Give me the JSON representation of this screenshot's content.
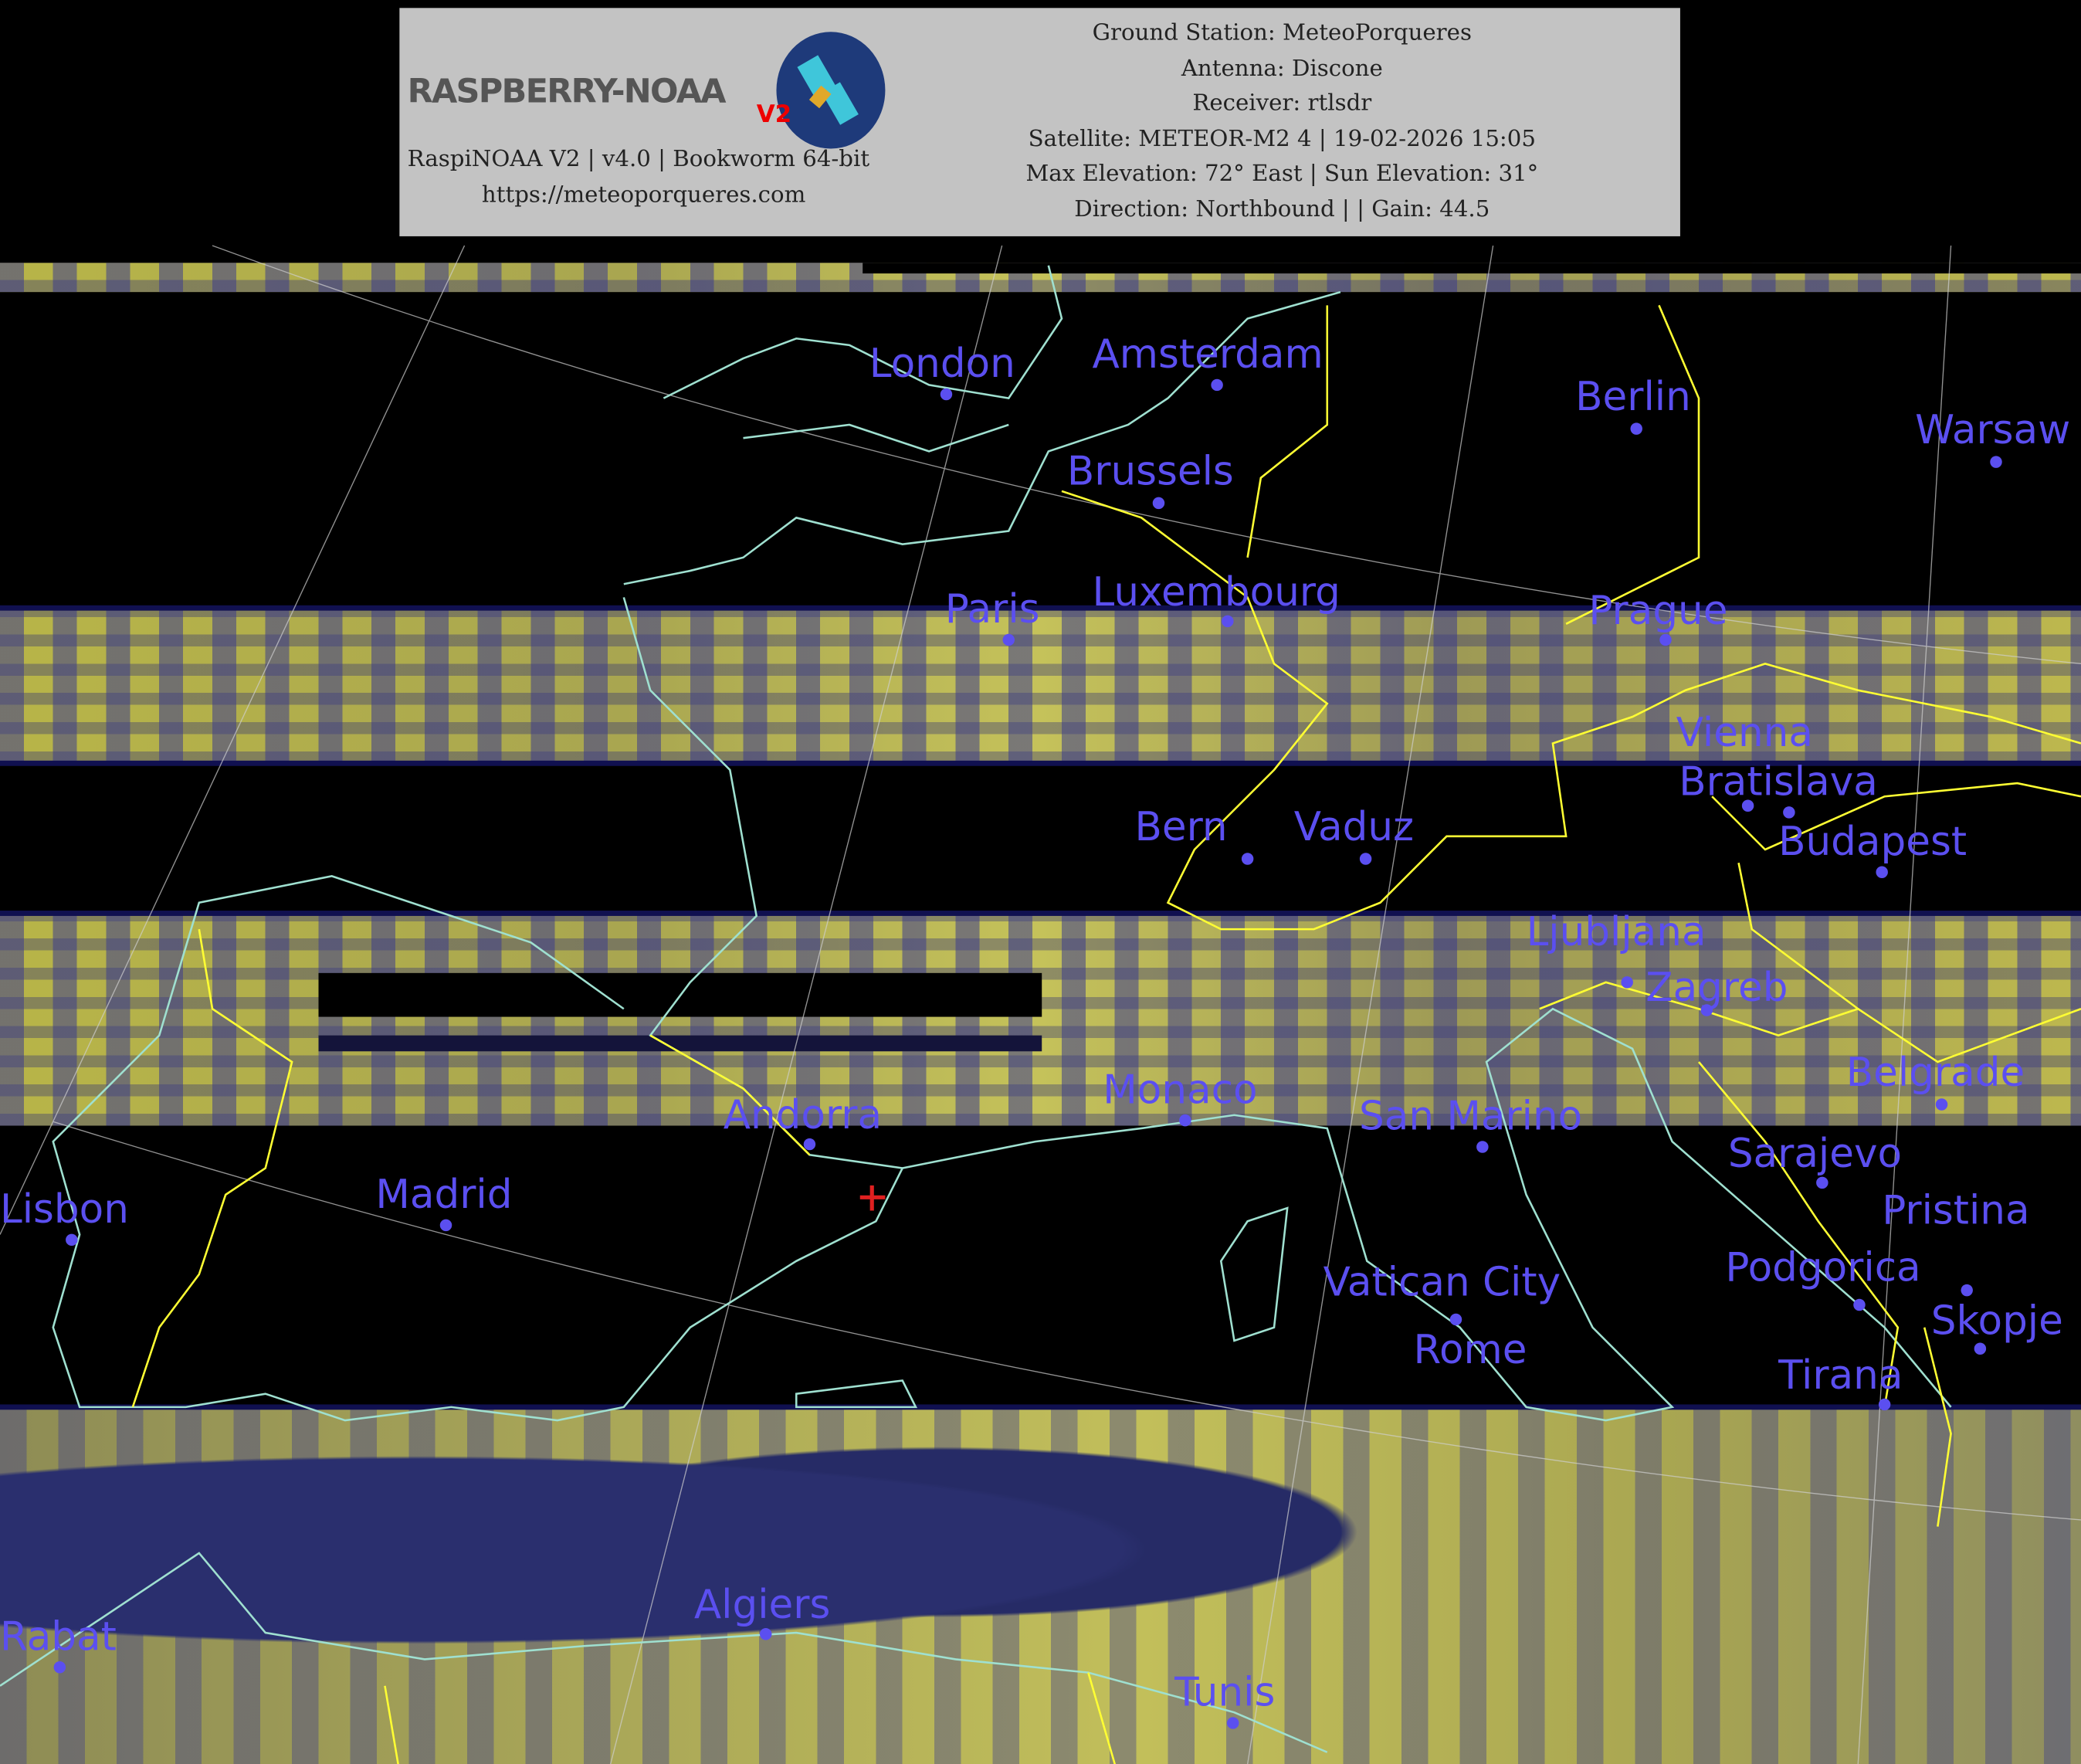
{
  "header": {
    "logo_text": "RASPBERRY-NOAA",
    "logo_badge": "V2",
    "software": "RaspiNOAA V2 | v4.0 | Bookworm 64-bit",
    "website": "https://meteoporqueres.com",
    "ground_station": "Ground Station: MeteoPorqueres",
    "antenna": "Antenna: Discone",
    "receiver": "Receiver: rtlsdr",
    "satellite": "Satellite: METEOR-M2 4 | 19-02-2026 15:05",
    "elevation": "Max Elevation: 72° East | Sun Elevation: 31°",
    "direction": "Direction: Northbound |  | Gain: 44.5"
  },
  "colors": {
    "city_label": "#5b4ff0",
    "coastline": "#9fe0d0",
    "border": "#ffff33",
    "station_marker": "#e02020"
  },
  "cities": [
    "London",
    "Amsterdam",
    "Berlin",
    "Warsaw",
    "Brussels",
    "Paris",
    "Luxembourg",
    "Prague",
    "Vienna",
    "Bratislava",
    "Budapest",
    "Bern",
    "Vaduz",
    "Ljubljana",
    "Zagreb",
    "Belgrade",
    "Monaco",
    "San Marino",
    "Andorra",
    "Sarajevo",
    "Madrid",
    "Lisbon",
    "Vatican City",
    "Rome",
    "Podgorica",
    "Pristina",
    "Skopje",
    "Tirana",
    "Algiers",
    "Rabat",
    "Tunis"
  ]
}
